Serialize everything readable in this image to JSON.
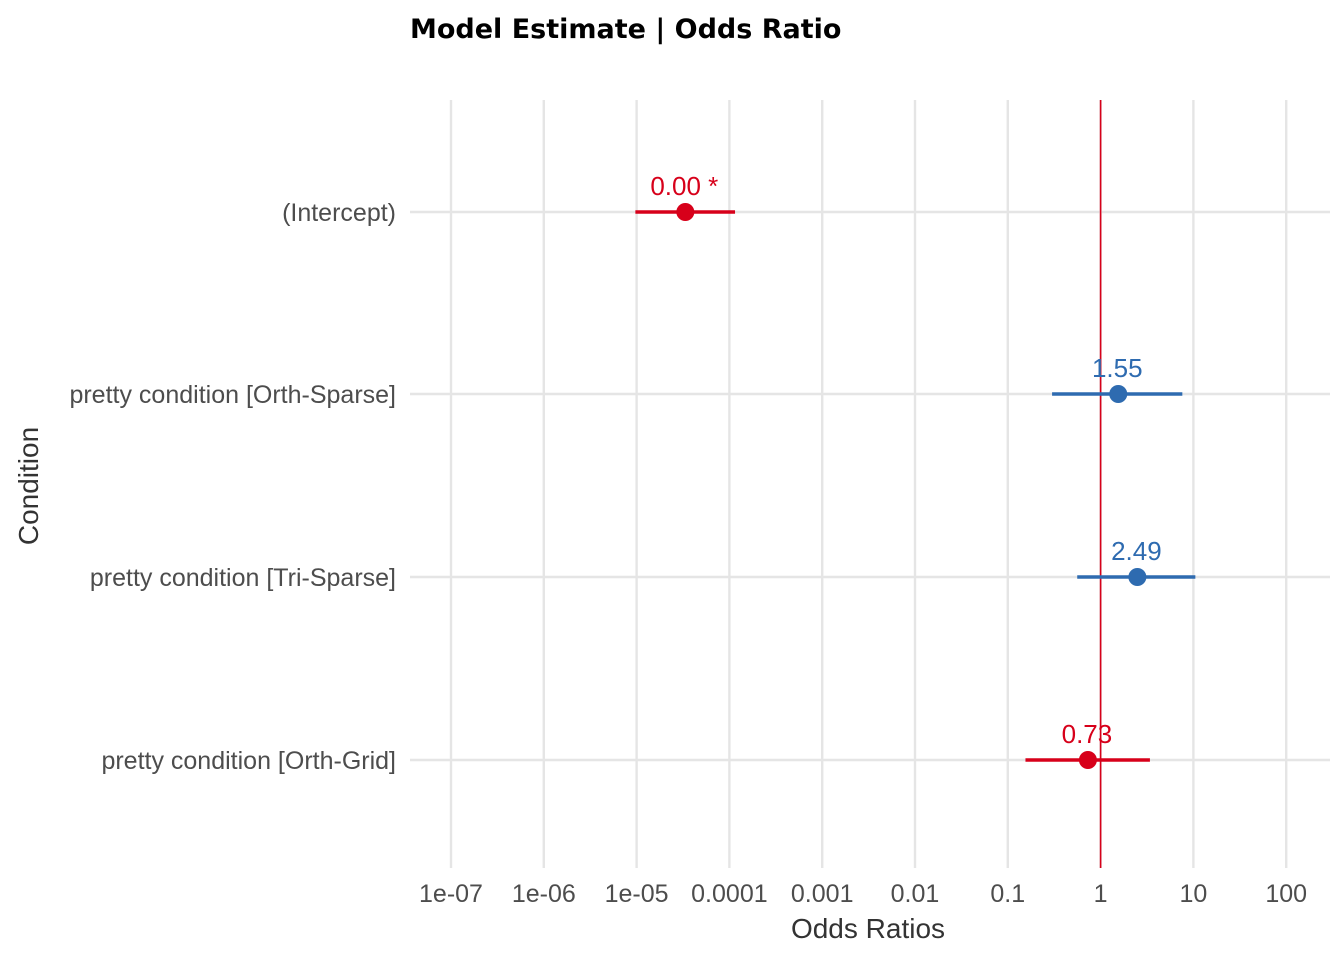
{
  "chart_data": {
    "type": "forest",
    "title": "Model Estimate | Odds Ratio",
    "xlabel": "Odds Ratios",
    "ylabel": "Condition",
    "x_scale": "log10",
    "xlim": [
      1e-07,
      100
    ],
    "x_ticks": [
      {
        "value": 1e-07,
        "label": "1e-07"
      },
      {
        "value": 1e-06,
        "label": "1e-06"
      },
      {
        "value": 1e-05,
        "label": "1e-05"
      },
      {
        "value": 0.0001,
        "label": "0.0001"
      },
      {
        "value": 0.001,
        "label": "0.001"
      },
      {
        "value": 0.01,
        "label": "0.01"
      },
      {
        "value": 0.1,
        "label": "0.1"
      },
      {
        "value": 1,
        "label": "1"
      },
      {
        "value": 10,
        "label": "10"
      },
      {
        "value": 100,
        "label": "100"
      }
    ],
    "reference_line": 1,
    "grid": true,
    "colors": {
      "negative": "#d7001a",
      "positive": "#2e6bb0",
      "reference": "#d7001a"
    },
    "terms": [
      {
        "term": "(Intercept)",
        "estimate": 3.35e-05,
        "ci_low": 9.7e-06,
        "ci_high": 0.000115,
        "label": "0.00 *",
        "direction": "negative"
      },
      {
        "term": "pretty condition [Orth-Sparse]",
        "estimate": 1.55,
        "ci_low": 0.3,
        "ci_high": 7.6,
        "label": "1.55",
        "direction": "positive"
      },
      {
        "term": "pretty condition [Tri-Sparse]",
        "estimate": 2.49,
        "ci_low": 0.56,
        "ci_high": 10.5,
        "label": "2.49",
        "direction": "positive"
      },
      {
        "term": "pretty condition [Orth-Grid]",
        "estimate": 0.73,
        "ci_low": 0.155,
        "ci_high": 3.4,
        "label": "0.73",
        "direction": "negative"
      }
    ]
  }
}
